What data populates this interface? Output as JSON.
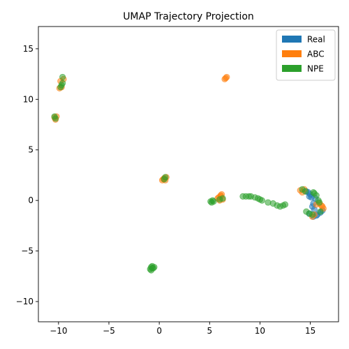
{
  "chart_data": {
    "type": "scatter",
    "title": "UMAP Trajectory Projection",
    "xlabel": "",
    "ylabel": "",
    "xlim": [
      -12.0,
      17.8
    ],
    "ylim": [
      -12.0,
      17.2
    ],
    "xticks": [
      -10,
      -5,
      0,
      5,
      10,
      15
    ],
    "xtick_labels": [
      "−10",
      "−5",
      "0",
      "5",
      "10",
      "15"
    ],
    "yticks": [
      -10,
      -5,
      0,
      5,
      10,
      15
    ],
    "ytick_labels": [
      "−10",
      "−5",
      "0",
      "5",
      "10",
      "15"
    ],
    "grid": false,
    "legend": {
      "placement": "top-right"
    },
    "series": [
      {
        "name": "Real",
        "color": "#1f77b4",
        "points": [
          [
            14.9,
            0.4
          ],
          [
            15.0,
            0.6
          ],
          [
            15.1,
            0.3
          ],
          [
            14.8,
            0.8
          ],
          [
            15.2,
            -0.6
          ],
          [
            15.4,
            -0.9
          ],
          [
            15.6,
            -1.5
          ],
          [
            15.3,
            -1.6
          ],
          [
            16.0,
            -1.2
          ],
          [
            16.2,
            -1.0
          ],
          [
            15.5,
            0.2
          ],
          [
            14.6,
            0.9
          ],
          [
            15.3,
            -0.3
          ],
          [
            15.7,
            -1.4
          ],
          [
            14.9,
            -1.3
          ]
        ]
      },
      {
        "name": "ABC",
        "color": "#ff7f0e",
        "points": [
          [
            -9.8,
            11.8
          ],
          [
            -9.7,
            11.2
          ],
          [
            -9.5,
            12.0
          ],
          [
            -9.9,
            11.1
          ],
          [
            -10.3,
            8.0
          ],
          [
            -10.4,
            8.2
          ],
          [
            -10.2,
            8.3
          ],
          [
            6.5,
            12.0
          ],
          [
            6.6,
            12.1
          ],
          [
            6.7,
            12.2
          ],
          [
            0.3,
            2.0
          ],
          [
            0.5,
            2.2
          ],
          [
            0.6,
            2.0
          ],
          [
            0.4,
            2.1
          ],
          [
            0.7,
            2.3
          ],
          [
            5.8,
            0.2
          ],
          [
            6.0,
            0.0
          ],
          [
            6.1,
            0.4
          ],
          [
            6.2,
            0.6
          ],
          [
            6.3,
            0.1
          ],
          [
            5.9,
            0.3
          ],
          [
            6.1,
            0.5
          ],
          [
            14.0,
            1.0
          ],
          [
            14.2,
            0.8
          ],
          [
            14.4,
            1.1
          ],
          [
            15.2,
            -1.6
          ],
          [
            15.6,
            -0.4
          ],
          [
            16.1,
            -0.5
          ],
          [
            16.3,
            -0.8
          ],
          [
            15.9,
            -0.3
          ],
          [
            15.4,
            -1.4
          ],
          [
            16.2,
            -0.6
          ]
        ]
      },
      {
        "name": "NPE",
        "color": "#2ca02c",
        "points": [
          [
            -9.6,
            12.2
          ],
          [
            -9.7,
            11.4
          ],
          [
            -9.6,
            11.6
          ],
          [
            -9.8,
            11.2
          ],
          [
            -10.4,
            8.3
          ],
          [
            -10.3,
            8.1
          ],
          [
            -0.9,
            -6.8
          ],
          [
            -0.8,
            -6.6
          ],
          [
            -0.7,
            -6.5
          ],
          [
            -0.6,
            -6.7
          ],
          [
            -0.5,
            -6.6
          ],
          [
            -0.8,
            -6.9
          ],
          [
            -0.7,
            -6.7
          ],
          [
            0.6,
            2.3
          ],
          [
            0.5,
            2.1
          ],
          [
            5.1,
            -0.1
          ],
          [
            5.2,
            -0.2
          ],
          [
            5.4,
            -0.1
          ],
          [
            5.3,
            0.0
          ],
          [
            6.0,
            0.1
          ],
          [
            6.3,
            0.2
          ],
          [
            8.3,
            0.4
          ],
          [
            8.6,
            0.4
          ],
          [
            8.9,
            0.4
          ],
          [
            9.1,
            0.4
          ],
          [
            9.5,
            0.3
          ],
          [
            9.8,
            0.2
          ],
          [
            10.0,
            0.1
          ],
          [
            10.2,
            0.0
          ],
          [
            10.8,
            -0.2
          ],
          [
            11.3,
            -0.3
          ],
          [
            11.7,
            -0.5
          ],
          [
            12.0,
            -0.6
          ],
          [
            12.3,
            -0.5
          ],
          [
            12.5,
            -0.4
          ],
          [
            14.2,
            1.1
          ],
          [
            14.6,
            -1.1
          ],
          [
            14.9,
            -1.3
          ],
          [
            15.2,
            -1.4
          ],
          [
            15.4,
            0.7
          ],
          [
            15.6,
            0.5
          ],
          [
            15.8,
            0.0
          ],
          [
            15.9,
            -0.2
          ],
          [
            15.3,
            0.8
          ],
          [
            14.5,
            0.9
          ],
          [
            16.0,
            -1.1
          ]
        ]
      }
    ]
  }
}
